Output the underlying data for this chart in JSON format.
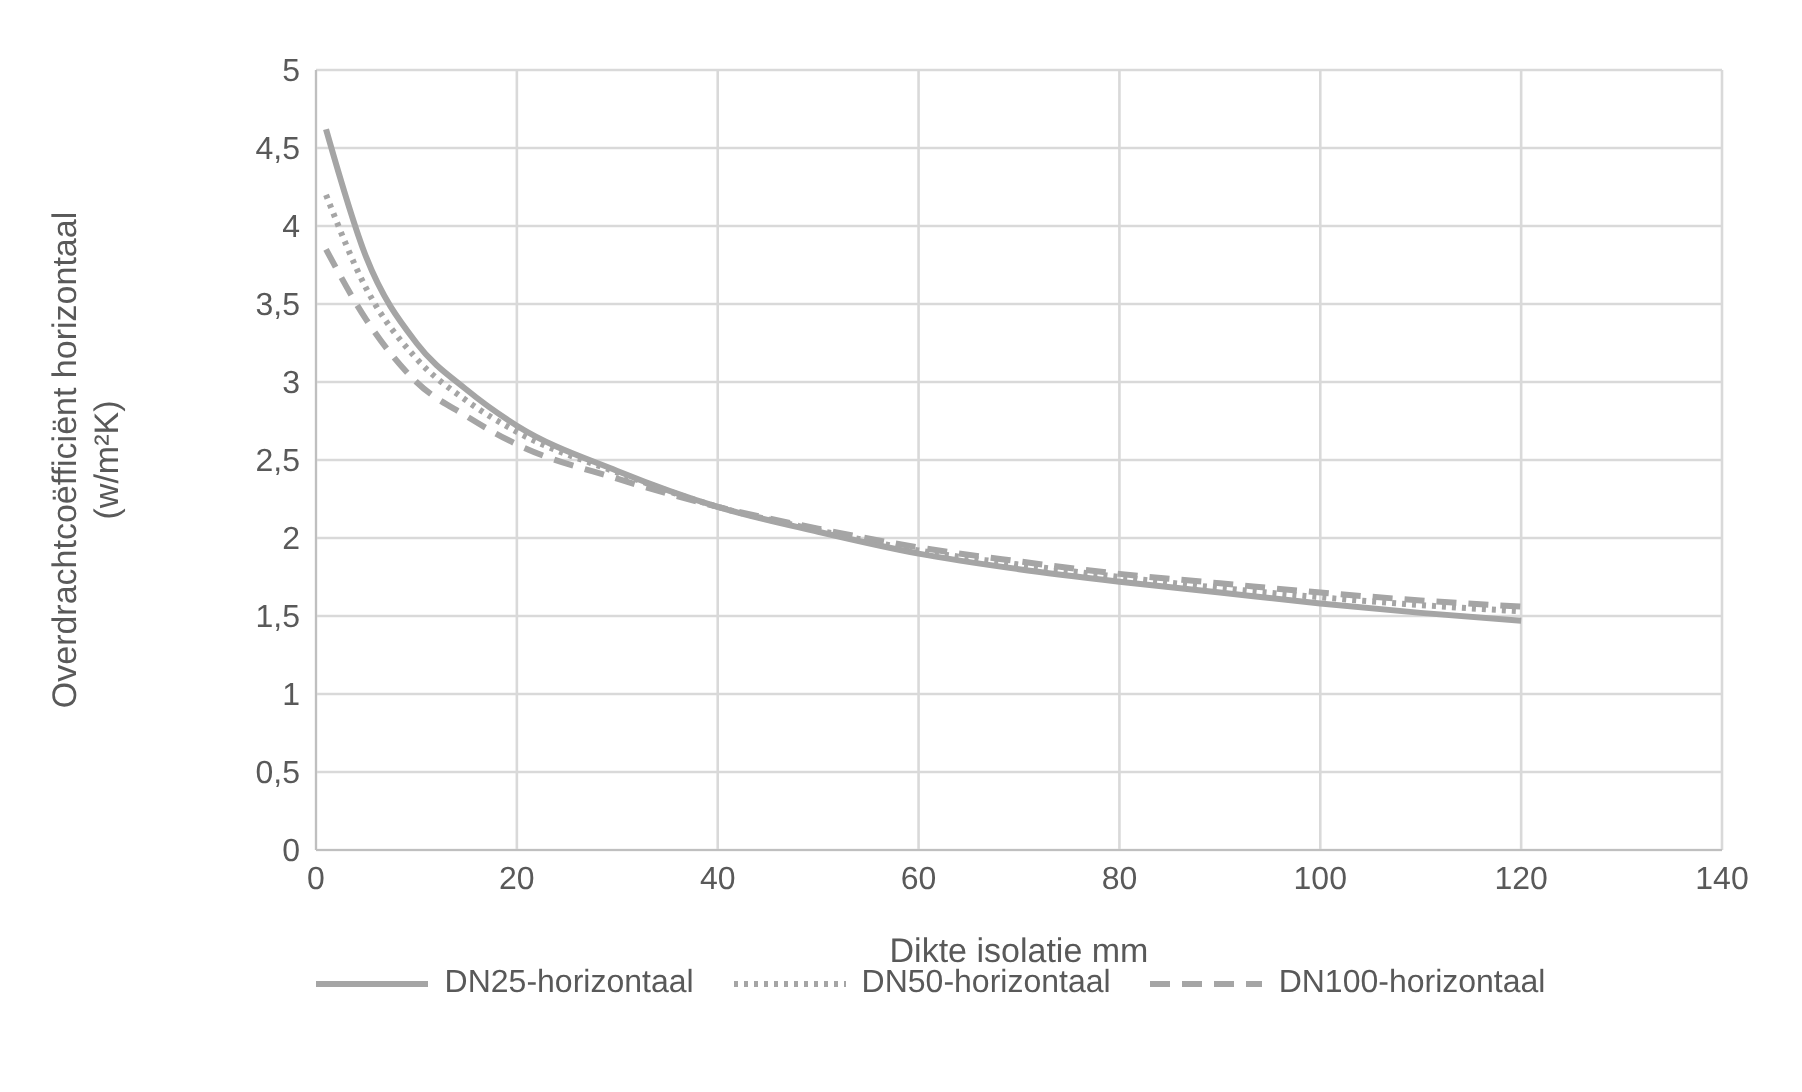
{
  "chart_data": {
    "type": "line",
    "xlabel": "Dikte isolatie mm",
    "ylabel": "Overdrachtcoëfficiënt horizontaal (w/m²K)",
    "x": [
      1,
      5,
      10,
      15,
      20,
      30,
      40,
      50,
      60,
      70,
      80,
      90,
      100,
      110,
      120
    ],
    "series": [
      {
        "name": "DN25-horizontaal",
        "color": "#a5a5a5",
        "line_style": "solid",
        "values": [
          4.62,
          3.8,
          3.25,
          2.95,
          2.72,
          2.43,
          2.2,
          2.04,
          1.9,
          1.8,
          1.72,
          1.65,
          1.58,
          1.52,
          1.47
        ]
      },
      {
        "name": "DN50-horizontaal",
        "color": "#a5a5a5",
        "line_style": "dotted",
        "values": [
          4.2,
          3.6,
          3.15,
          2.88,
          2.68,
          2.42,
          2.2,
          2.05,
          1.92,
          1.83,
          1.75,
          1.68,
          1.62,
          1.57,
          1.53
        ]
      },
      {
        "name": "DN100-horizontaal",
        "color": "#a5a5a5",
        "line_style": "dashed",
        "values": [
          3.85,
          3.4,
          3.0,
          2.78,
          2.6,
          2.38,
          2.2,
          2.06,
          1.94,
          1.85,
          1.77,
          1.71,
          1.65,
          1.6,
          1.56
        ]
      }
    ],
    "xlim": [
      0,
      140
    ],
    "xticks": [
      0,
      20,
      40,
      60,
      80,
      100,
      120,
      140
    ],
    "ylim": [
      0,
      5
    ],
    "yticks": [
      0,
      {
        "value": 0.5,
        "label": "0,5"
      },
      1,
      {
        "value": 1.5,
        "label": "1,5"
      },
      2,
      {
        "value": 2.5,
        "label": "2,5"
      },
      3,
      {
        "value": 3.5,
        "label": "3,5"
      },
      4,
      {
        "value": 4.5,
        "label": "4,5"
      },
      5
    ],
    "grid": true,
    "legend": "bottom",
    "marker": "none"
  }
}
